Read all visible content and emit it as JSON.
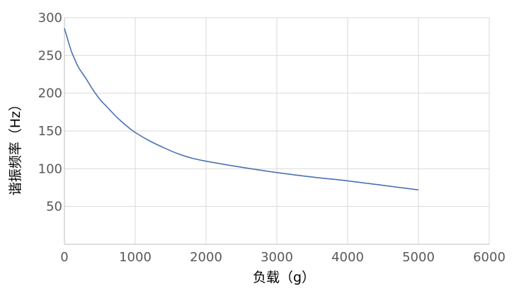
{
  "chart_data": {
    "type": "line",
    "title": "",
    "xlabel": "负载（g）",
    "ylabel": "谐振频率（Hz）",
    "xlim": [
      0,
      6000
    ],
    "ylim": [
      0,
      300
    ],
    "x_ticks": [
      0,
      1000,
      2000,
      3000,
      4000,
      5000,
      6000
    ],
    "y_ticks": [
      50,
      100,
      150,
      200,
      250,
      300
    ],
    "grid": true,
    "legend": "none",
    "series": [
      {
        "color": "#4a72b0",
        "x": [
          0,
          50,
          100,
          150,
          200,
          300,
          400,
          500,
          600,
          700,
          800,
          900,
          1000,
          1200,
          1400,
          1600,
          1800,
          2000,
          2500,
          3000,
          3500,
          4000,
          4500,
          5000
        ],
        "y": [
          286,
          270,
          255,
          244,
          234,
          220,
          205,
          192,
          182,
          172,
          163,
          155,
          148,
          137,
          128,
          120,
          114,
          110,
          102,
          95,
          89,
          84,
          78,
          72
        ]
      }
    ]
  }
}
